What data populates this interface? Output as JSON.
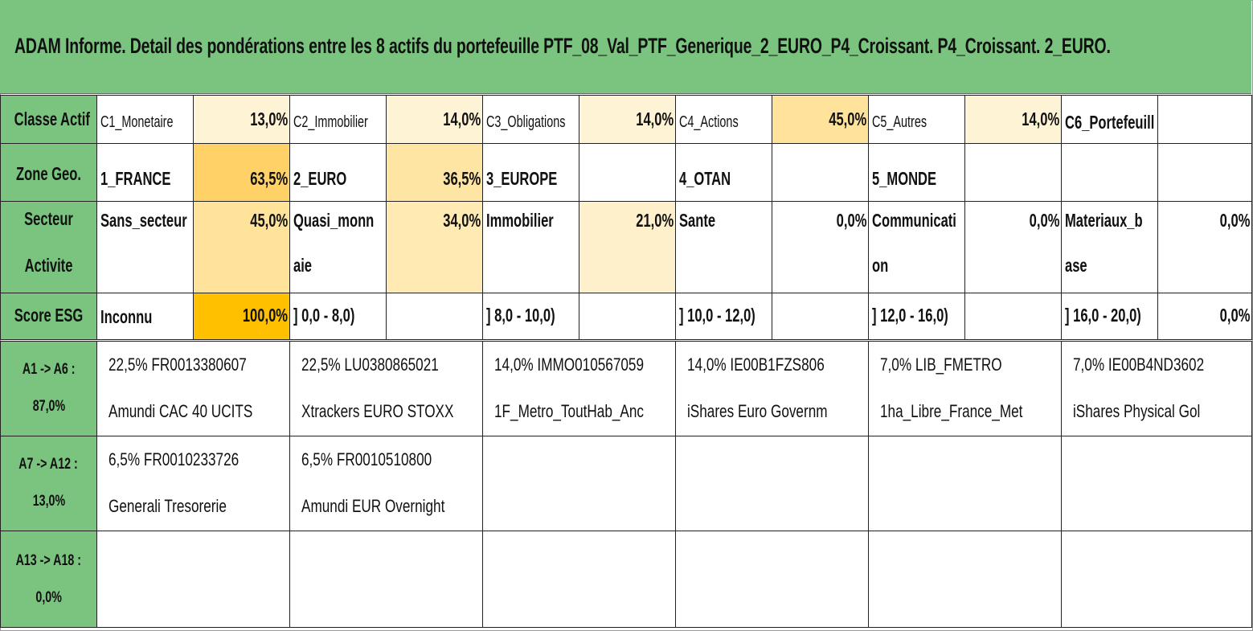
{
  "title": "ADAM Informe. Detail des pondérations entre les 8 actifs du portefeuille PTF_08_Val_PTF_Generique_2_EURO_P4_Croissant. P4_Croissant. 2_EURO.",
  "colors": {
    "header_green": "#7bc47f"
  },
  "rows": [
    {
      "header": "Classe Actif",
      "cells": [
        {
          "label": "C1_Monetaire",
          "value": "13,0%",
          "color": "#fff3d6"
        },
        {
          "label": "C2_Immobilier",
          "value": "14,0%",
          "color": "#fff3d6"
        },
        {
          "label": "C3_Obligations",
          "value": "14,0%",
          "color": "#fff3d6"
        },
        {
          "label": "C4_Actions",
          "value": "45,0%",
          "color": "#ffe39a"
        },
        {
          "label": "C5_Autres",
          "value": "14,0%",
          "color": "#fff3d6"
        },
        {
          "label": "C6_Portefeuill",
          "value": "",
          "color": "#ffffff"
        }
      ]
    },
    {
      "header": "Zone Geo.",
      "cells": [
        {
          "label": "1_FRANCE",
          "value": "63,5%",
          "color": "#ffd166"
        },
        {
          "label": "2_EURO",
          "value": "36,5%",
          "color": "#ffe5a3"
        },
        {
          "label": "3_EUROPE",
          "value": "",
          "color": "#ffffff"
        },
        {
          "label": "4_OTAN",
          "value": "",
          "color": "#ffffff"
        },
        {
          "label": "5_MONDE",
          "value": "",
          "color": "#ffffff"
        },
        {
          "label": "",
          "value": "",
          "color": "#ffffff"
        }
      ]
    },
    {
      "header_l1": "Secteur",
      "header_l2": "Activite",
      "cells": [
        {
          "label": "Sans_secteur",
          "value": "45,0%",
          "color": "#ffe39a"
        },
        {
          "label1": "Quasi_monn",
          "label2": "aie",
          "value": "34,0%",
          "color": "#ffeab3"
        },
        {
          "label": "Immobilier",
          "value": "21,0%",
          "color": "#fff0cc"
        },
        {
          "label": "Sante",
          "value": "0,0%",
          "color": "#ffffff"
        },
        {
          "label1": "Communicati",
          "label2": "on",
          "value": "0,0%",
          "color": "#ffffff"
        },
        {
          "label1": "Materiaux_b",
          "label2": "ase",
          "value": "0,0%",
          "color": "#ffffff"
        }
      ]
    },
    {
      "header": "Score ESG",
      "cells": [
        {
          "label": "Inconnu",
          "value": "100,0%",
          "color": "#ffc000"
        },
        {
          "label": "] 0,0 - 8,0)",
          "value": "",
          "color": "#ffffff"
        },
        {
          "label": "] 8,0 - 10,0)",
          "value": "",
          "color": "#ffffff"
        },
        {
          "label": "] 10,0 - 12,0)",
          "value": "",
          "color": "#ffffff"
        },
        {
          "label": "] 12,0 - 16,0)",
          "value": "",
          "color": "#ffffff"
        },
        {
          "label": "] 16,0 - 20,0)",
          "value": "0,0%",
          "color": "#ffffff"
        }
      ]
    }
  ],
  "groups": [
    {
      "range": "A1 -> A6 :",
      "total": "87,0%",
      "assets": [
        {
          "line1": "22,5% FR0013380607",
          "line2": "Amundi CAC 40 UCITS"
        },
        {
          "line1": "22,5% LU0380865021",
          "line2": "Xtrackers EURO STOXX"
        },
        {
          "line1": "14,0% IMMO010567059",
          "line2": "1F_Metro_ToutHab_Anc"
        },
        {
          "line1": "14,0% IE00B1FZS806",
          "line2": "iShares Euro Governm"
        },
        {
          "line1": "7,0% LIB_FMETRO",
          "line2": "1ha_Libre_France_Met"
        },
        {
          "line1": "7,0% IE00B4ND3602",
          "line2": "iShares Physical Gol"
        }
      ]
    },
    {
      "range": "A7 -> A12 :",
      "total": "13,0%",
      "assets": [
        {
          "line1": "6,5% FR0010233726",
          "line2": "Generali Tresorerie"
        },
        {
          "line1": "6,5% FR0010510800",
          "line2": "Amundi EUR Overnight"
        },
        {
          "line1": "",
          "line2": ""
        },
        {
          "line1": "",
          "line2": ""
        },
        {
          "line1": "",
          "line2": ""
        },
        {
          "line1": "",
          "line2": ""
        }
      ]
    },
    {
      "range": "A13 -> A18 :",
      "total": "0,0%",
      "assets": [
        {
          "line1": "",
          "line2": ""
        },
        {
          "line1": "",
          "line2": ""
        },
        {
          "line1": "",
          "line2": ""
        },
        {
          "line1": "",
          "line2": ""
        },
        {
          "line1": "",
          "line2": ""
        },
        {
          "line1": "",
          "line2": ""
        }
      ]
    }
  ]
}
